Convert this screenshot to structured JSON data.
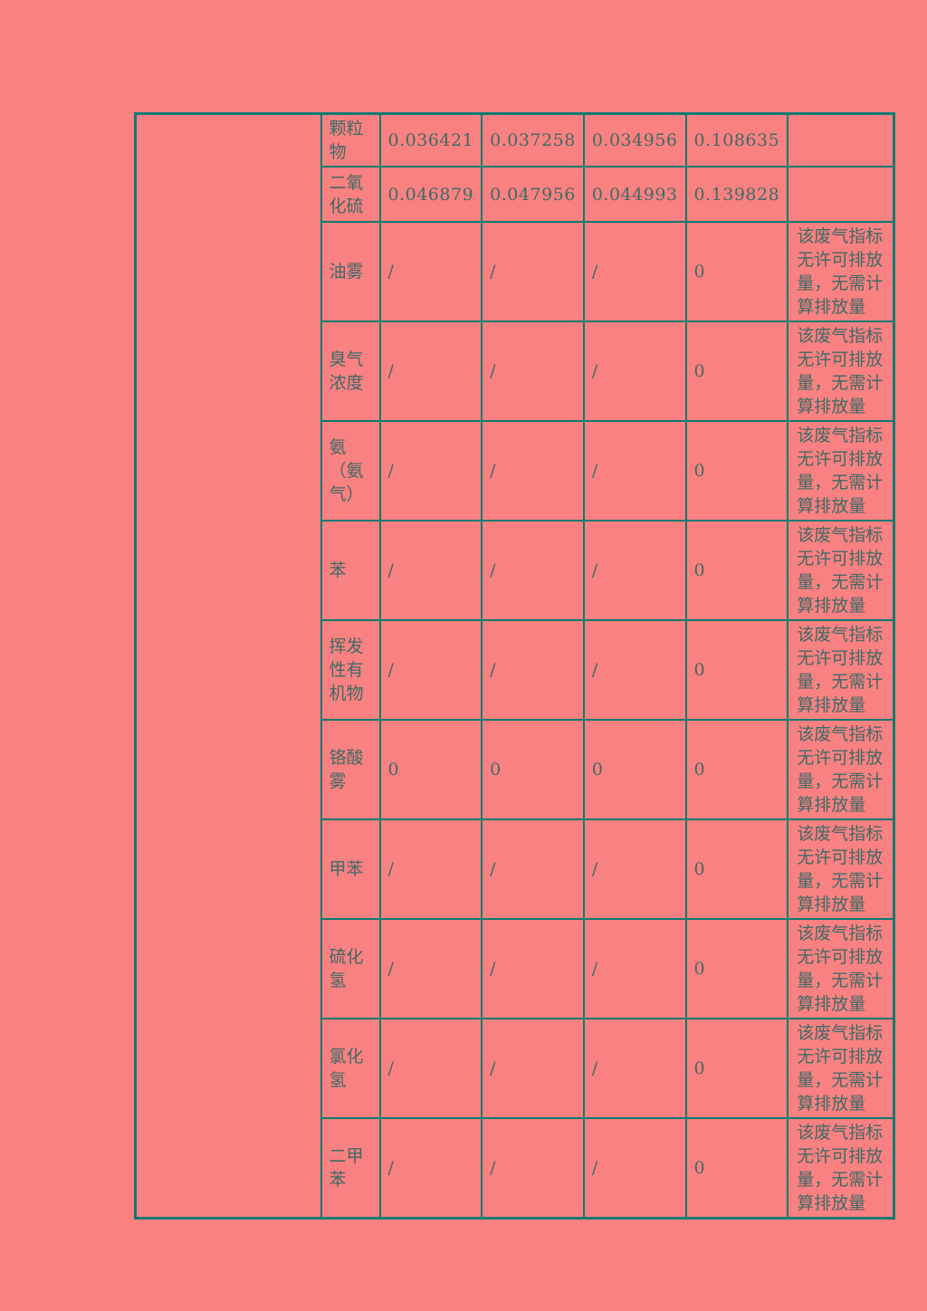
{
  "page": {
    "background_color": "#fa8181",
    "border_color": "#0c7b72",
    "text_color": "#3d6b66"
  },
  "table": {
    "left_cell_text": "",
    "columns": {
      "pollutant": "pollutant-name",
      "values_count": 4,
      "remark": "remark"
    },
    "rows": [
      {
        "name": "颗粒物",
        "values": [
          "0.036421",
          "0.037258",
          "0.034956",
          "0.108635"
        ],
        "remark": ""
      },
      {
        "name": "二氧化硫",
        "values": [
          "0.046879",
          "0.047956",
          "0.044993",
          "0.139828"
        ],
        "remark": ""
      },
      {
        "name": "油雾",
        "values": [
          "/",
          "/",
          "/",
          "0"
        ],
        "remark": "该废气指标无许可排放量，无需计算排放量"
      },
      {
        "name": "臭气浓度",
        "values": [
          "/",
          "/",
          "/",
          "0"
        ],
        "remark": "该废气指标无许可排放量，无需计算排放量"
      },
      {
        "name": "氨（氨气）",
        "values": [
          "/",
          "/",
          "/",
          "0"
        ],
        "remark": "该废气指标无许可排放量，无需计算排放量"
      },
      {
        "name": "苯",
        "values": [
          "/",
          "/",
          "/",
          "0"
        ],
        "remark": "该废气指标无许可排放量，无需计算排放量"
      },
      {
        "name": "挥发性有机物",
        "values": [
          "/",
          "/",
          "/",
          "0"
        ],
        "remark": "该废气指标无许可排放量，无需计算排放量"
      },
      {
        "name": "铬酸雾",
        "values": [
          "0",
          "0",
          "0",
          "0"
        ],
        "remark": "该废气指标无许可排放量，无需计算排放量"
      },
      {
        "name": "甲苯",
        "values": [
          "/",
          "/",
          "/",
          "0"
        ],
        "remark": "该废气指标无许可排放量，无需计算排放量"
      },
      {
        "name": "硫化氢",
        "values": [
          "/",
          "/",
          "/",
          "0"
        ],
        "remark": "该废气指标无许可排放量，无需计算排放量"
      },
      {
        "name": "氯化氢",
        "values": [
          "/",
          "/",
          "/",
          "0"
        ],
        "remark": "该废气指标无许可排放量，无需计算排放量"
      },
      {
        "name": "二甲苯",
        "values": [
          "/",
          "/",
          "/",
          "0"
        ],
        "remark": "该废气指标无许可排放量，无需计算排放量"
      }
    ]
  }
}
